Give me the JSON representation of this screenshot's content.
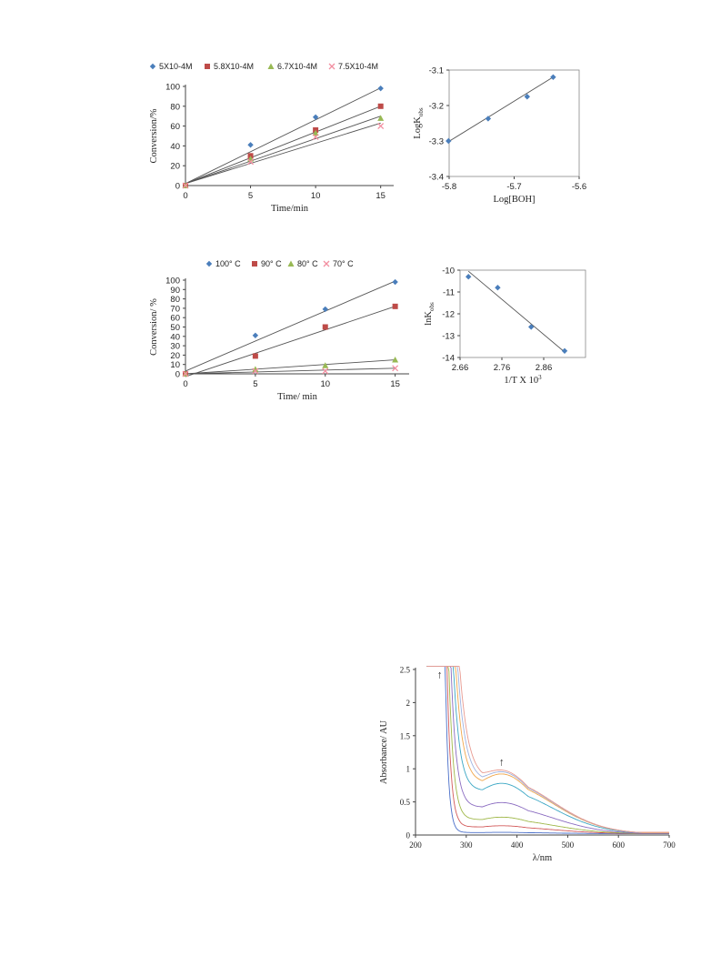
{
  "chart_data": [
    {
      "id": "conc_conversion",
      "type": "scatter",
      "xlabel": "Time/min",
      "ylabel": "Conversion/%",
      "xlim": [
        0,
        16
      ],
      "ylim": [
        0,
        100
      ],
      "xticks": [
        0,
        5,
        10,
        15
      ],
      "yticks": [
        0,
        20,
        40,
        60,
        80,
        100
      ],
      "legend_position": "top",
      "trendlines": true,
      "series": [
        {
          "name": "5X10-4M",
          "marker": "diamond",
          "color": "#4a7ebb",
          "x": [
            0,
            5,
            10,
            15
          ],
          "y": [
            0,
            41,
            69,
            98
          ],
          "fit": [
            2,
            98.5
          ]
        },
        {
          "name": "5.8X10-4M",
          "marker": "square",
          "color": "#be4b48",
          "x": [
            0,
            5,
            10,
            15
          ],
          "y": [
            0,
            30,
            56,
            80
          ],
          "fit": [
            2,
            80
          ]
        },
        {
          "name": "6.7X10-4M",
          "marker": "triangle",
          "color": "#98b954",
          "x": [
            0,
            5,
            10,
            15
          ],
          "y": [
            0,
            27,
            53,
            68
          ],
          "fit": [
            2,
            70
          ]
        },
        {
          "name": "7.5X10-4M",
          "marker": "cross",
          "color": "#f28ea0",
          "x": [
            0,
            5,
            10,
            15
          ],
          "y": [
            0,
            24,
            49,
            60
          ],
          "fit": [
            2,
            63
          ]
        }
      ]
    },
    {
      "id": "log_plot",
      "type": "scatter",
      "xlabel": "Log[BOH]",
      "ylabel": "LogK",
      "ylabel_sub": "obs",
      "xlim": [
        -5.8,
        -5.6
      ],
      "ylim": [
        -3.4,
        -3.1
      ],
      "xticks": [
        -5.8,
        -5.7,
        -5.6
      ],
      "yticks": [
        -3.1,
        -3.2,
        -3.3,
        -3.4
      ],
      "trendlines": true,
      "series": [
        {
          "marker": "diamond",
          "color": "#4a7ebb",
          "x": [
            -5.801,
            -5.74,
            -5.68,
            -5.64
          ],
          "y": [
            -3.3,
            -3.237,
            -3.175,
            -3.12
          ],
          "fit": [
            [
              -5.801,
              -3.302
            ],
            [
              -5.64,
              -3.12
            ]
          ]
        }
      ]
    },
    {
      "id": "temp_conversion",
      "type": "scatter",
      "xlabel": "Time/ min",
      "ylabel": "Conversion/ %",
      "xlim": [
        0,
        16
      ],
      "ylim": [
        0,
        100
      ],
      "xticks": [
        0,
        5,
        10,
        15
      ],
      "yticks": [
        0,
        10,
        20,
        30,
        40,
        50,
        60,
        70,
        80,
        90,
        100
      ],
      "legend_position": "top",
      "trendlines": true,
      "series": [
        {
          "name": "100° C",
          "marker": "diamond",
          "color": "#4a7ebb",
          "x": [
            0,
            5,
            10,
            15
          ],
          "y": [
            0,
            41,
            69,
            98
          ],
          "fit": [
            3,
            99
          ]
        },
        {
          "name": "90° C",
          "marker": "square",
          "color": "#be4b48",
          "x": [
            0,
            5,
            10,
            15
          ],
          "y": [
            0,
            19,
            50,
            72
          ],
          "fit": [
            -3,
            72
          ]
        },
        {
          "name": "80° C",
          "marker": "triangle",
          "color": "#98b954",
          "x": [
            0,
            5,
            10,
            15
          ],
          "y": [
            0,
            5,
            9,
            15
          ],
          "fit": [
            0,
            15
          ]
        },
        {
          "name": "70° C",
          "marker": "cross",
          "color": "#f28ea0",
          "x": [
            0,
            5,
            10,
            15
          ],
          "y": [
            0,
            3,
            3,
            6
          ],
          "fit": [
            0,
            6
          ]
        }
      ]
    },
    {
      "id": "arrhenius",
      "type": "scatter",
      "xlabel": "1/T X 10",
      "xlabel_sup": "3",
      "ylabel": "lnK",
      "ylabel_sub": "obs",
      "xlim": [
        2.66,
        2.96
      ],
      "ylim": [
        -14,
        -10
      ],
      "xticks": [
        2.66,
        2.76,
        2.86
      ],
      "yticks": [
        -10,
        -11,
        -12,
        -13,
        -14
      ],
      "trendlines": true,
      "series": [
        {
          "marker": "diamond",
          "color": "#4a7ebb",
          "x": [
            2.68,
            2.75,
            2.83,
            2.91
          ],
          "y": [
            -10.3,
            -10.8,
            -12.6,
            -13.7
          ],
          "fit": [
            [
              2.68,
              -10.05
            ],
            [
              2.91,
              -13.75
            ]
          ]
        }
      ]
    },
    {
      "id": "uv_vis",
      "type": "line",
      "xlabel": "λ/nm",
      "ylabel": "Absorbance/ AU",
      "xlim": [
        200,
        700
      ],
      "ylim": [
        0,
        2.5
      ],
      "xticks": [
        200,
        300,
        400,
        500,
        600,
        700
      ],
      "yticks": [
        0,
        0.5,
        1,
        1.5,
        2,
        2.5
      ],
      "annotations": [
        "↑",
        "↑"
      ],
      "series": [
        {
          "color": "#4a6fc9",
          "plateau": 0.02
        },
        {
          "color": "#d25a5a",
          "plateau": 0.12
        },
        {
          "color": "#a0b84a",
          "plateau": 0.25
        },
        {
          "color": "#8a6bc0",
          "plateau": 0.47
        },
        {
          "color": "#3ba7c4",
          "plateau": 0.76
        },
        {
          "color": "#f0a64a",
          "plateau": 0.9
        },
        {
          "color": "#9fb2e0",
          "plateau": 0.93
        },
        {
          "color": "#e89a90",
          "plateau": 0.95
        }
      ]
    }
  ]
}
